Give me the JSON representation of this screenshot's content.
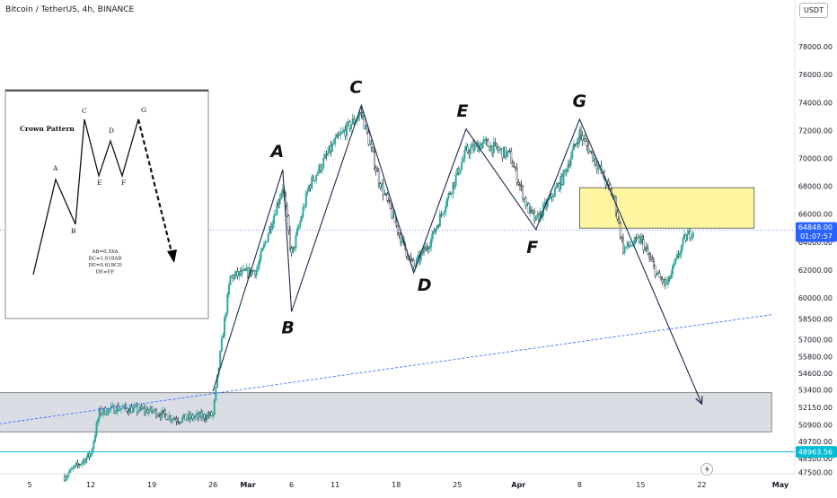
{
  "header": {
    "title": "Bitcoin / TetherUS, 4h, BINANCE",
    "currency": "USDT"
  },
  "price_axis": {
    "ticks": [
      "78000.00",
      "76000.00",
      "74000.00",
      "72000.00",
      "70000.00",
      "68000.00",
      "66000.00",
      "64000.00",
      "62000.00",
      "60000.00",
      "58500.00",
      "57000.00",
      "55800.00",
      "54600.00",
      "53400.00",
      "52150.00",
      "50900.00",
      "49700.00",
      "48500.00",
      "47500.00"
    ],
    "current_price": "64848.00",
    "countdown": "01:07:57",
    "level_label": "48963.56"
  },
  "time_axis": {
    "ticks": [
      "5",
      "12",
      "19",
      "26",
      "Mar",
      "6",
      "11",
      "18",
      "25",
      "Apr",
      "8",
      "15",
      "22",
      "May"
    ]
  },
  "wave_labels": [
    "A",
    "B",
    "C",
    "D",
    "E",
    "F",
    "G"
  ],
  "inset": {
    "title": "Crown Pattern",
    "points": [
      "A",
      "B",
      "C",
      "D",
      "E",
      "F",
      "G"
    ],
    "notes": [
      "AB=0.5XA",
      "BC=1.618AB",
      "DE=0.618CD",
      "DE=EF"
    ]
  },
  "colors": {
    "up": "#26a69a",
    "down": "#131722",
    "price_line": "#2962ff",
    "level_line": "#00bcd4",
    "zone_yellow": "#fff59d",
    "zone_gray": "#d1d4dc"
  },
  "chart_data": {
    "type": "candlestick",
    "symbol": "Bitcoin / TetherUS",
    "interval": "4h",
    "exchange": "BINANCE",
    "price_path": [
      {
        "x": "2024-02-09",
        "y": 47200
      },
      {
        "x": "2024-02-12",
        "y": 48800
      },
      {
        "x": "2024-02-13",
        "y": 51800
      },
      {
        "x": "2024-02-15",
        "y": 52100
      },
      {
        "x": "2024-02-19",
        "y": 51900
      },
      {
        "x": "2024-02-22",
        "y": 51300
      },
      {
        "x": "2024-02-26",
        "y": 51600
      },
      {
        "x": "2024-02-27",
        "y": 56800
      },
      {
        "x": "2024-02-28",
        "y": 61500
      },
      {
        "x": "2024-03-02",
        "y": 62000
      },
      {
        "x": "2024-03-05",
        "y": 68000
      },
      {
        "x": "2024-03-06",
        "y": 63000
      },
      {
        "x": "2024-03-08",
        "y": 68000
      },
      {
        "x": "2024-03-11",
        "y": 71200
      },
      {
        "x": "2024-03-14",
        "y": 73300
      },
      {
        "x": "2024-03-16",
        "y": 68500
      },
      {
        "x": "2024-03-19",
        "y": 63500
      },
      {
        "x": "2024-03-20",
        "y": 62200
      },
      {
        "x": "2024-03-22",
        "y": 64200
      },
      {
        "x": "2024-03-26",
        "y": 70500
      },
      {
        "x": "2024-03-28",
        "y": 71100
      },
      {
        "x": "2024-03-31",
        "y": 70200
      },
      {
        "x": "2024-04-02",
        "y": 66500
      },
      {
        "x": "2024-04-03",
        "y": 65500
      },
      {
        "x": "2024-04-06",
        "y": 68500
      },
      {
        "x": "2024-04-08",
        "y": 71800
      },
      {
        "x": "2024-04-10",
        "y": 69600
      },
      {
        "x": "2024-04-12",
        "y": 67000
      },
      {
        "x": "2024-04-13",
        "y": 63500
      },
      {
        "x": "2024-04-15",
        "y": 64200
      },
      {
        "x": "2024-04-17",
        "y": 61500
      },
      {
        "x": "2024-04-18",
        "y": 60900
      },
      {
        "x": "2024-04-20",
        "y": 64200
      },
      {
        "x": "2024-04-21",
        "y": 64848
      }
    ],
    "wave_points": [
      {
        "label": "",
        "x": "2024-02-26",
        "y": 53300
      },
      {
        "label": "A",
        "x": "2024-03-05",
        "y": 69200
      },
      {
        "label": "B",
        "x": "2024-03-06",
        "y": 59000
      },
      {
        "label": "C",
        "x": "2024-03-14",
        "y": 73800
      },
      {
        "label": "D",
        "x": "2024-03-20",
        "y": 61800
      },
      {
        "label": "E",
        "x": "2024-03-26",
        "y": 72100
      },
      {
        "label": "F",
        "x": "2024-04-03",
        "y": 64900
      },
      {
        "label": "G",
        "x": "2024-04-08",
        "y": 72800
      },
      {
        "label": "",
        "x": "2024-04-22",
        "y": 52400
      }
    ],
    "zones": [
      {
        "color": "yellow",
        "x_start": "2024-04-08",
        "x_end": "2024-04-28",
        "y_low": 65000,
        "y_high": 67900
      },
      {
        "color": "gray",
        "x_start": "2024-01-30",
        "x_end": "2024-04-30",
        "y_low": 50400,
        "y_high": 53200
      }
    ],
    "horizontal_levels": [
      48963.56
    ],
    "trendline": {
      "style": "dashed",
      "from": {
        "x": "2024-01-30",
        "y": 50750
      },
      "to": {
        "x": "2024-04-30",
        "y": 58800
      }
    },
    "current_price": 64848.0,
    "x_range": [
      "2024-01-30",
      "2024-05-01"
    ],
    "ylim": [
      46500,
      80000
    ]
  }
}
